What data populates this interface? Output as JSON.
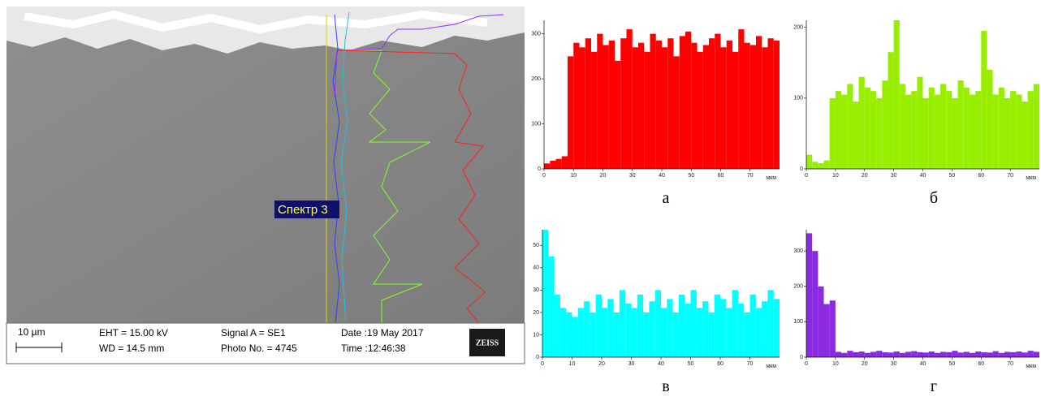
{
  "sem_image": {
    "spectrum_label": "Спектр 3",
    "scale_bar": "10 µm",
    "eht": "EHT = 15.00 kV",
    "wd": "WD = 14.5 mm",
    "signal": "Signal A = SE1",
    "photo": "Photo No. = 4745",
    "date": "Date :19 May 2017",
    "time": "Time :12:46:38",
    "logo": "ZEISS"
  },
  "chart_data": [
    {
      "type": "bar",
      "caption": "а",
      "x_label": "мкм",
      "color": "#ff0000",
      "x": [
        0,
        2,
        4,
        6,
        8,
        10,
        12,
        14,
        16,
        18,
        20,
        22,
        24,
        26,
        28,
        30,
        32,
        34,
        36,
        38,
        40,
        42,
        44,
        46,
        48,
        50,
        52,
        54,
        56,
        58,
        60,
        62,
        64,
        66,
        68,
        70,
        72,
        74,
        76,
        78
      ],
      "values": [
        12,
        18,
        22,
        28,
        250,
        280,
        270,
        290,
        260,
        300,
        275,
        285,
        240,
        290,
        310,
        270,
        280,
        260,
        300,
        285,
        270,
        290,
        250,
        295,
        305,
        280,
        260,
        275,
        290,
        300,
        270,
        285,
        260,
        310,
        280,
        275,
        295,
        270,
        290,
        285
      ],
      "xlim": [
        0,
        80
      ],
      "xticks": [
        0,
        10,
        20,
        30,
        40,
        50,
        60,
        70
      ],
      "ylim": [
        0,
        330
      ],
      "yticks": [
        0,
        100,
        200,
        300
      ]
    },
    {
      "type": "bar",
      "caption": "б",
      "x_label": "мкм",
      "color": "#99ee00",
      "x": [
        0,
        2,
        4,
        6,
        8,
        10,
        12,
        14,
        16,
        18,
        20,
        22,
        24,
        26,
        28,
        30,
        32,
        34,
        36,
        38,
        40,
        42,
        44,
        46,
        48,
        50,
        52,
        54,
        56,
        58,
        60,
        62,
        64,
        66,
        68,
        70,
        72,
        74,
        76,
        78
      ],
      "values": [
        20,
        10,
        8,
        12,
        100,
        110,
        105,
        120,
        95,
        130,
        115,
        110,
        100,
        125,
        165,
        210,
        120,
        105,
        110,
        130,
        100,
        115,
        105,
        120,
        110,
        100,
        125,
        115,
        105,
        110,
        195,
        140,
        105,
        115,
        100,
        110,
        105,
        95,
        110,
        120
      ],
      "xlim": [
        0,
        80
      ],
      "xticks": [
        0,
        10,
        20,
        30,
        40,
        50,
        60,
        70
      ],
      "ylim": [
        0,
        210
      ],
      "yticks": [
        0,
        100,
        200
      ]
    },
    {
      "type": "bar",
      "caption": "в",
      "x_label": "мкм",
      "color": "#00ffff",
      "x": [
        0,
        2,
        4,
        6,
        8,
        10,
        12,
        14,
        16,
        18,
        20,
        22,
        24,
        26,
        28,
        30,
        32,
        34,
        36,
        38,
        40,
        42,
        44,
        46,
        48,
        50,
        52,
        54,
        56,
        58,
        60,
        62,
        64,
        66,
        68,
        70,
        72,
        74,
        76,
        78
      ],
      "values": [
        57,
        45,
        28,
        22,
        20,
        18,
        22,
        25,
        20,
        28,
        22,
        26,
        20,
        30,
        24,
        22,
        28,
        20,
        25,
        30,
        22,
        26,
        20,
        28,
        24,
        30,
        22,
        25,
        20,
        28,
        26,
        22,
        30,
        24,
        20,
        28,
        22,
        25,
        30,
        26
      ],
      "xlim": [
        0,
        80
      ],
      "xticks": [
        0,
        10,
        20,
        30,
        40,
        50,
        60,
        70
      ],
      "ylim": [
        0,
        57
      ],
      "yticks": [
        0,
        10,
        20,
        30,
        40,
        50
      ]
    },
    {
      "type": "bar",
      "caption": "г",
      "x_label": "мкм",
      "color": "#8a2be2",
      "x": [
        0,
        2,
        4,
        6,
        8,
        10,
        12,
        14,
        16,
        18,
        20,
        22,
        24,
        26,
        28,
        30,
        32,
        34,
        36,
        38,
        40,
        42,
        44,
        46,
        48,
        50,
        52,
        54,
        56,
        58,
        60,
        62,
        64,
        66,
        68,
        70,
        72,
        74,
        76,
        78
      ],
      "values": [
        350,
        300,
        200,
        150,
        160,
        15,
        12,
        18,
        14,
        16,
        12,
        15,
        18,
        14,
        13,
        16,
        12,
        15,
        17,
        14,
        13,
        16,
        12,
        15,
        14,
        18,
        13,
        15,
        12,
        16,
        14,
        13,
        17,
        12,
        15,
        14,
        16,
        13,
        18,
        15
      ],
      "xlim": [
        0,
        80
      ],
      "xticks": [
        0,
        10,
        20,
        30,
        40,
        50,
        60,
        70
      ],
      "ylim": [
        0,
        360
      ],
      "yticks": [
        0,
        100,
        200,
        300
      ]
    }
  ]
}
